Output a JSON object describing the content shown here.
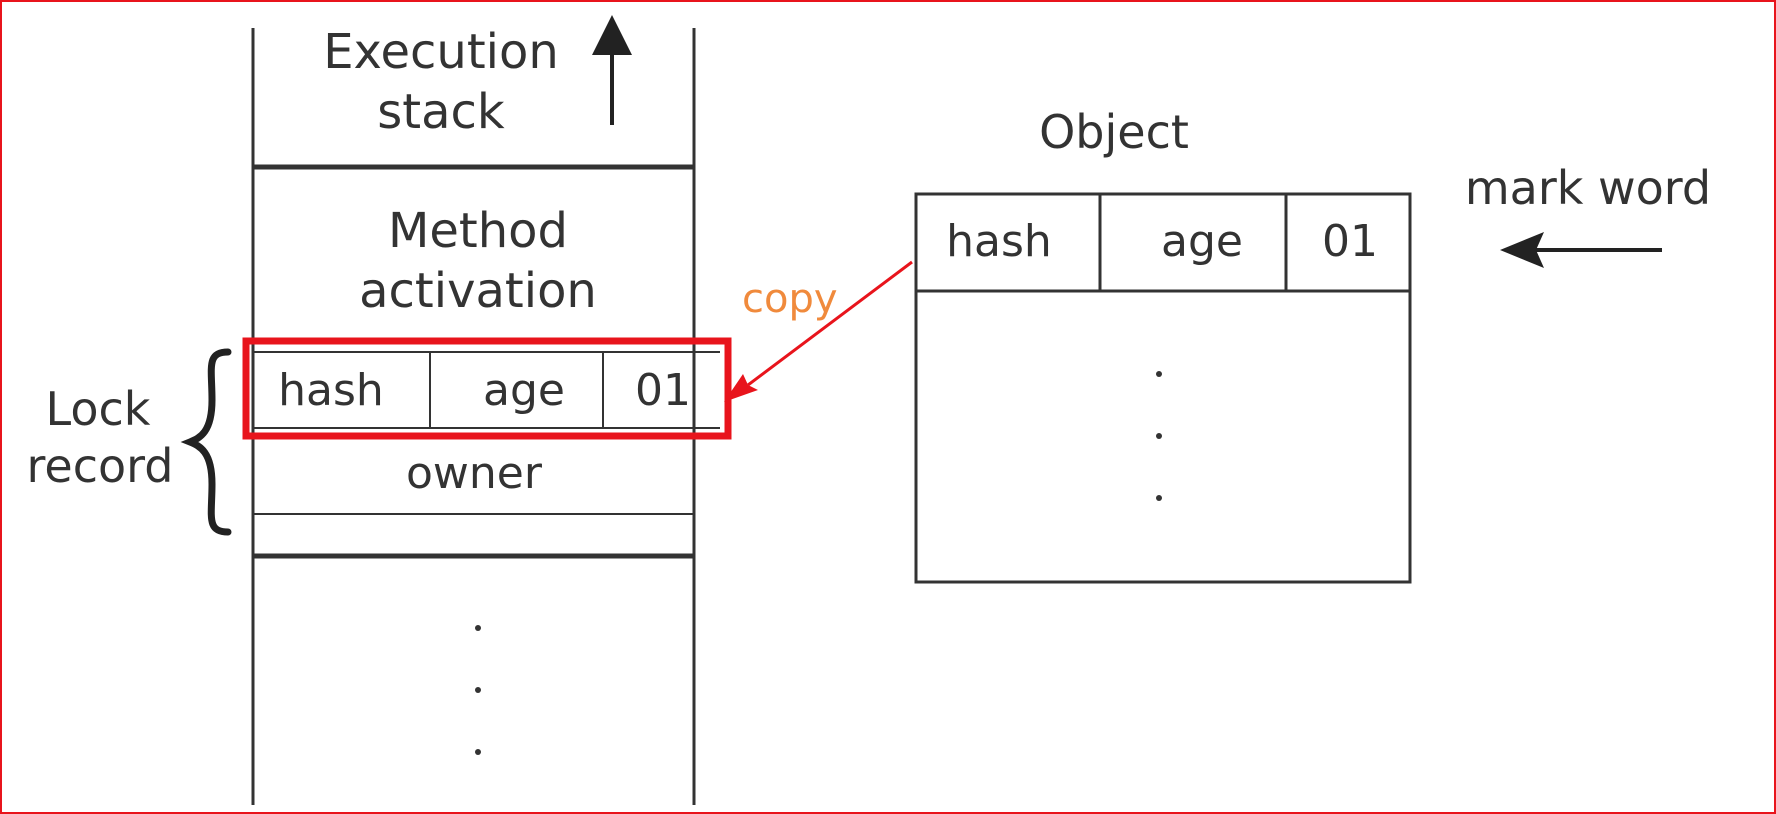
{
  "diagram": {
    "stack": {
      "title_line1": "Execution",
      "title_line2": "stack",
      "method_line1": "Method",
      "method_line2": "activation",
      "lock_record": {
        "label_line1": "Lock",
        "label_line2": "record",
        "fields": [
          "hash",
          "age",
          "01"
        ],
        "owner": "owner"
      },
      "ellipsis": ".\n.\n."
    },
    "object": {
      "title": "Object",
      "fields": [
        "hash",
        "age",
        "01"
      ],
      "mark_word_label": "mark word",
      "ellipsis": ".\n.\n."
    },
    "copy_label": "copy",
    "colors": {
      "frame": "#e8141c",
      "highlight": "#e8141c",
      "copy_text": "#f08a3c",
      "arrow": "#e8141c",
      "line": "#333333"
    }
  }
}
